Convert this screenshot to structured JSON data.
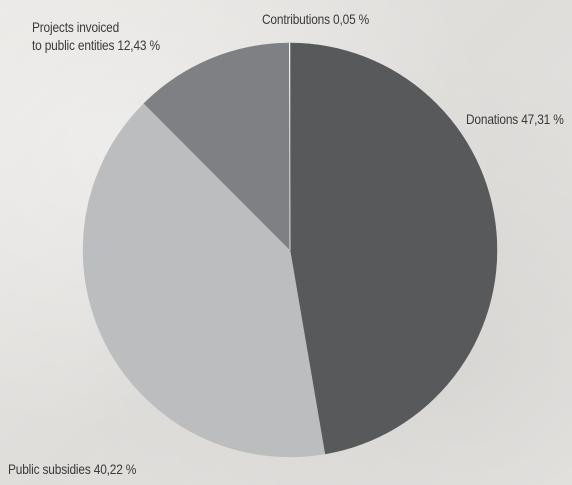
{
  "chart_data": {
    "type": "pie",
    "title": "",
    "slices": [
      {
        "label": "Donations",
        "value": 47.31,
        "display": "47,31 %",
        "color": "#58595b"
      },
      {
        "label": "Public subsidies",
        "value": 40.22,
        "display": "40,22 %",
        "color": "#bcbdbf"
      },
      {
        "label": "Projects invoiced to public entities",
        "value": 12.43,
        "display": "12,43 %",
        "color": "#7f8083"
      },
      {
        "label": "Contributions",
        "value": 0.05,
        "display": "0,05 %",
        "color": "#ffffff"
      }
    ],
    "labels": {
      "donations": "Donations 47,31 %",
      "public_subsidies": "Public subsidies 40,22 %",
      "projects_line1": "Projects invoiced",
      "projects_line2": "to public entities 12,43 %",
      "contributions": "Contributions 0,05 %"
    }
  }
}
